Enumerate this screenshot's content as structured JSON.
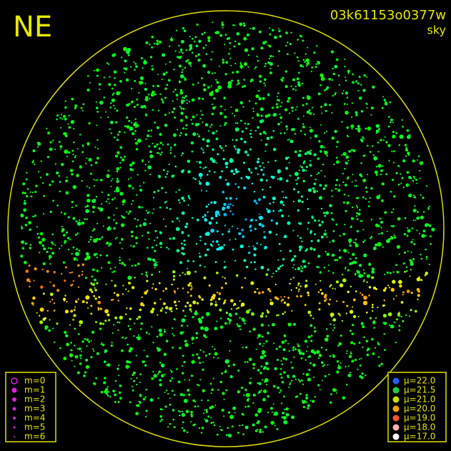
{
  "title": "NE",
  "frame_id": "03k61153o0377w",
  "subtitle": "sky",
  "magnitude_legend": [
    "m=0",
    "m=1",
    "m=2",
    "m=3",
    "m=4",
    "m=5",
    "m=6"
  ],
  "magnitude_color": "#e020e0",
  "brightness_legend": [
    {
      "label": "μ=22.0",
      "color": "#2060ff"
    },
    {
      "label": "μ=21.5",
      "color": "#20d040"
    },
    {
      "label": "μ=21.0",
      "color": "#c8e000"
    },
    {
      "label": "μ=20.0",
      "color": "#ffa000"
    },
    {
      "label": "μ=19.0",
      "color": "#ff5030"
    },
    {
      "label": "μ=18.0",
      "color": "#ffb0b0"
    },
    {
      "label": "μ=17.0",
      "color": "#ffffff"
    }
  ]
}
